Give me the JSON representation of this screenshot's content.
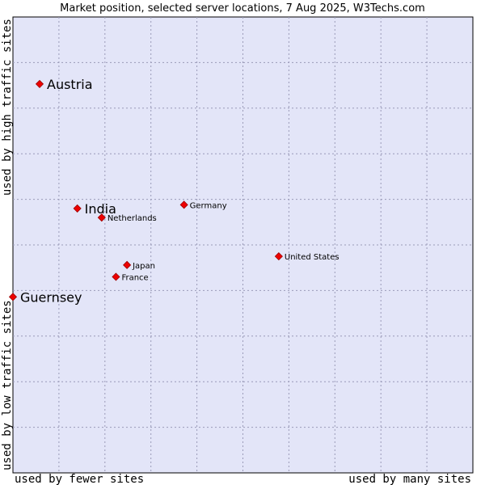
{
  "chart_data": {
    "type": "scatter",
    "title": "Market position, selected server locations, 7 Aug 2025, W3Techs.com",
    "xlabel_left": "used by fewer sites",
    "xlabel_right": "used by many sites",
    "ylabel_bottom": "used by low traffic sites",
    "ylabel_top": "used by high traffic sites",
    "xlim": [
      0,
      100
    ],
    "ylim": [
      0,
      100
    ],
    "grid": true,
    "points": [
      {
        "name": "Austria",
        "x": 5.8,
        "y": 85.3,
        "emphasis": true
      },
      {
        "name": "India",
        "x": 14.0,
        "y": 58.0,
        "emphasis": true
      },
      {
        "name": "Netherlands",
        "x": 19.3,
        "y": 56.0,
        "emphasis": false
      },
      {
        "name": "Germany",
        "x": 37.2,
        "y": 58.8,
        "emphasis": false
      },
      {
        "name": "United States",
        "x": 57.8,
        "y": 47.5,
        "emphasis": false
      },
      {
        "name": "Japan",
        "x": 24.8,
        "y": 45.6,
        "emphasis": false
      },
      {
        "name": "France",
        "x": 22.4,
        "y": 43.0,
        "emphasis": false
      },
      {
        "name": "Guernsey",
        "x": 0.0,
        "y": 38.6,
        "emphasis": true
      }
    ]
  }
}
